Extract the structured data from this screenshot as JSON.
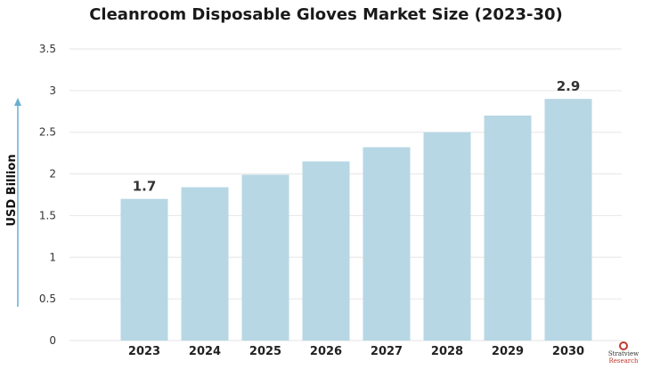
{
  "chart_data": {
    "type": "bar",
    "title": "Cleanroom Disposable Gloves Market Size (2023-30)",
    "xlabel": "",
    "ylabel": "USD Billion",
    "ylim": [
      0,
      3.5
    ],
    "yticks": [
      "0",
      "0.5",
      "1",
      "1.5",
      "2",
      "2.5",
      "3",
      "3.5"
    ],
    "categories": [
      "2023",
      "2024",
      "2025",
      "2026",
      "2027",
      "2028",
      "2029",
      "2030"
    ],
    "values": [
      1.7,
      1.84,
      1.99,
      2.15,
      2.32,
      2.5,
      2.7,
      2.9
    ],
    "data_labels": [
      {
        "index": 0,
        "text": "1.7"
      },
      {
        "index": 7,
        "text": "2.9"
      }
    ],
    "grid": true,
    "bar_color": "#b7d7e4",
    "axis_arrow_color": "#6aaed0"
  },
  "logo": {
    "name": "Stratview",
    "tag": "Research"
  }
}
